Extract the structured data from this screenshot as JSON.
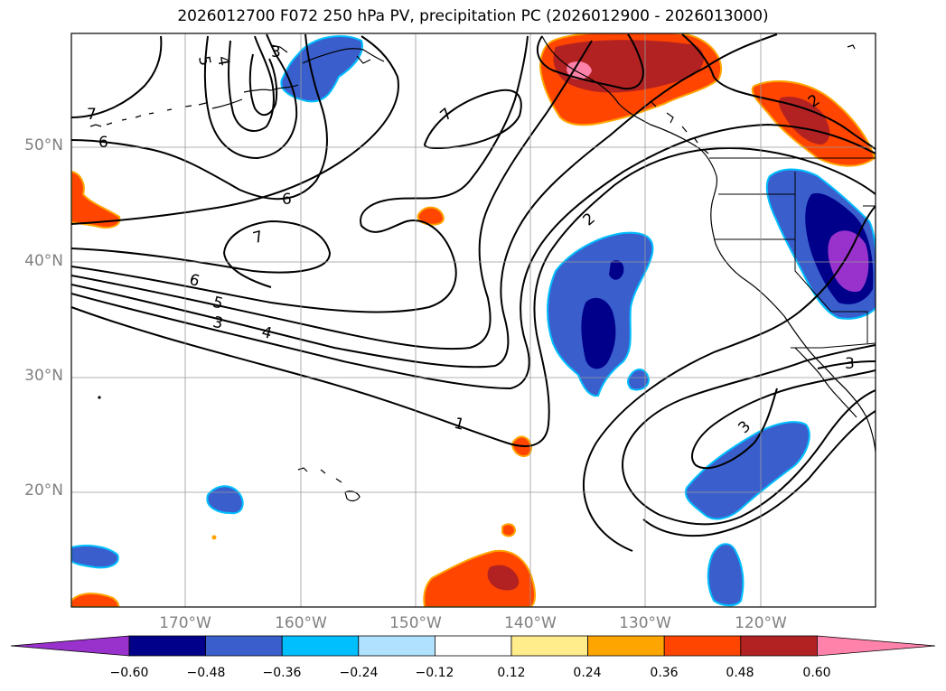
{
  "title": "2026012700 F072 250 hPa PV, precipitation PC (2026012900 - 2026013000)",
  "lat_labels": [
    "50°N",
    "40°N",
    "30°N",
    "20°N"
  ],
  "lon_labels": [
    "170°W",
    "160°W",
    "150°W",
    "140°W",
    "130°W",
    "120°W"
  ],
  "contour_labels": [
    "5",
    "4",
    "3",
    "7",
    "6",
    "7",
    "6",
    "7",
    "6",
    "5",
    "3",
    "4",
    "2",
    "1",
    "3",
    "2",
    "3"
  ],
  "colorbar": {
    "ticks": [
      "−0.60",
      "−0.48",
      "−0.36",
      "−0.24",
      "−0.12",
      "0.12",
      "0.24",
      "0.36",
      "0.48",
      "0.60"
    ],
    "colors": [
      "#9932cc",
      "#00008b",
      "#3a5fcd",
      "#00bfff",
      "#b0e2ff",
      "#ffffff",
      "#ffec8b",
      "#ffa500",
      "#ff4500",
      "#b22222",
      "#ff82ab"
    ]
  }
}
